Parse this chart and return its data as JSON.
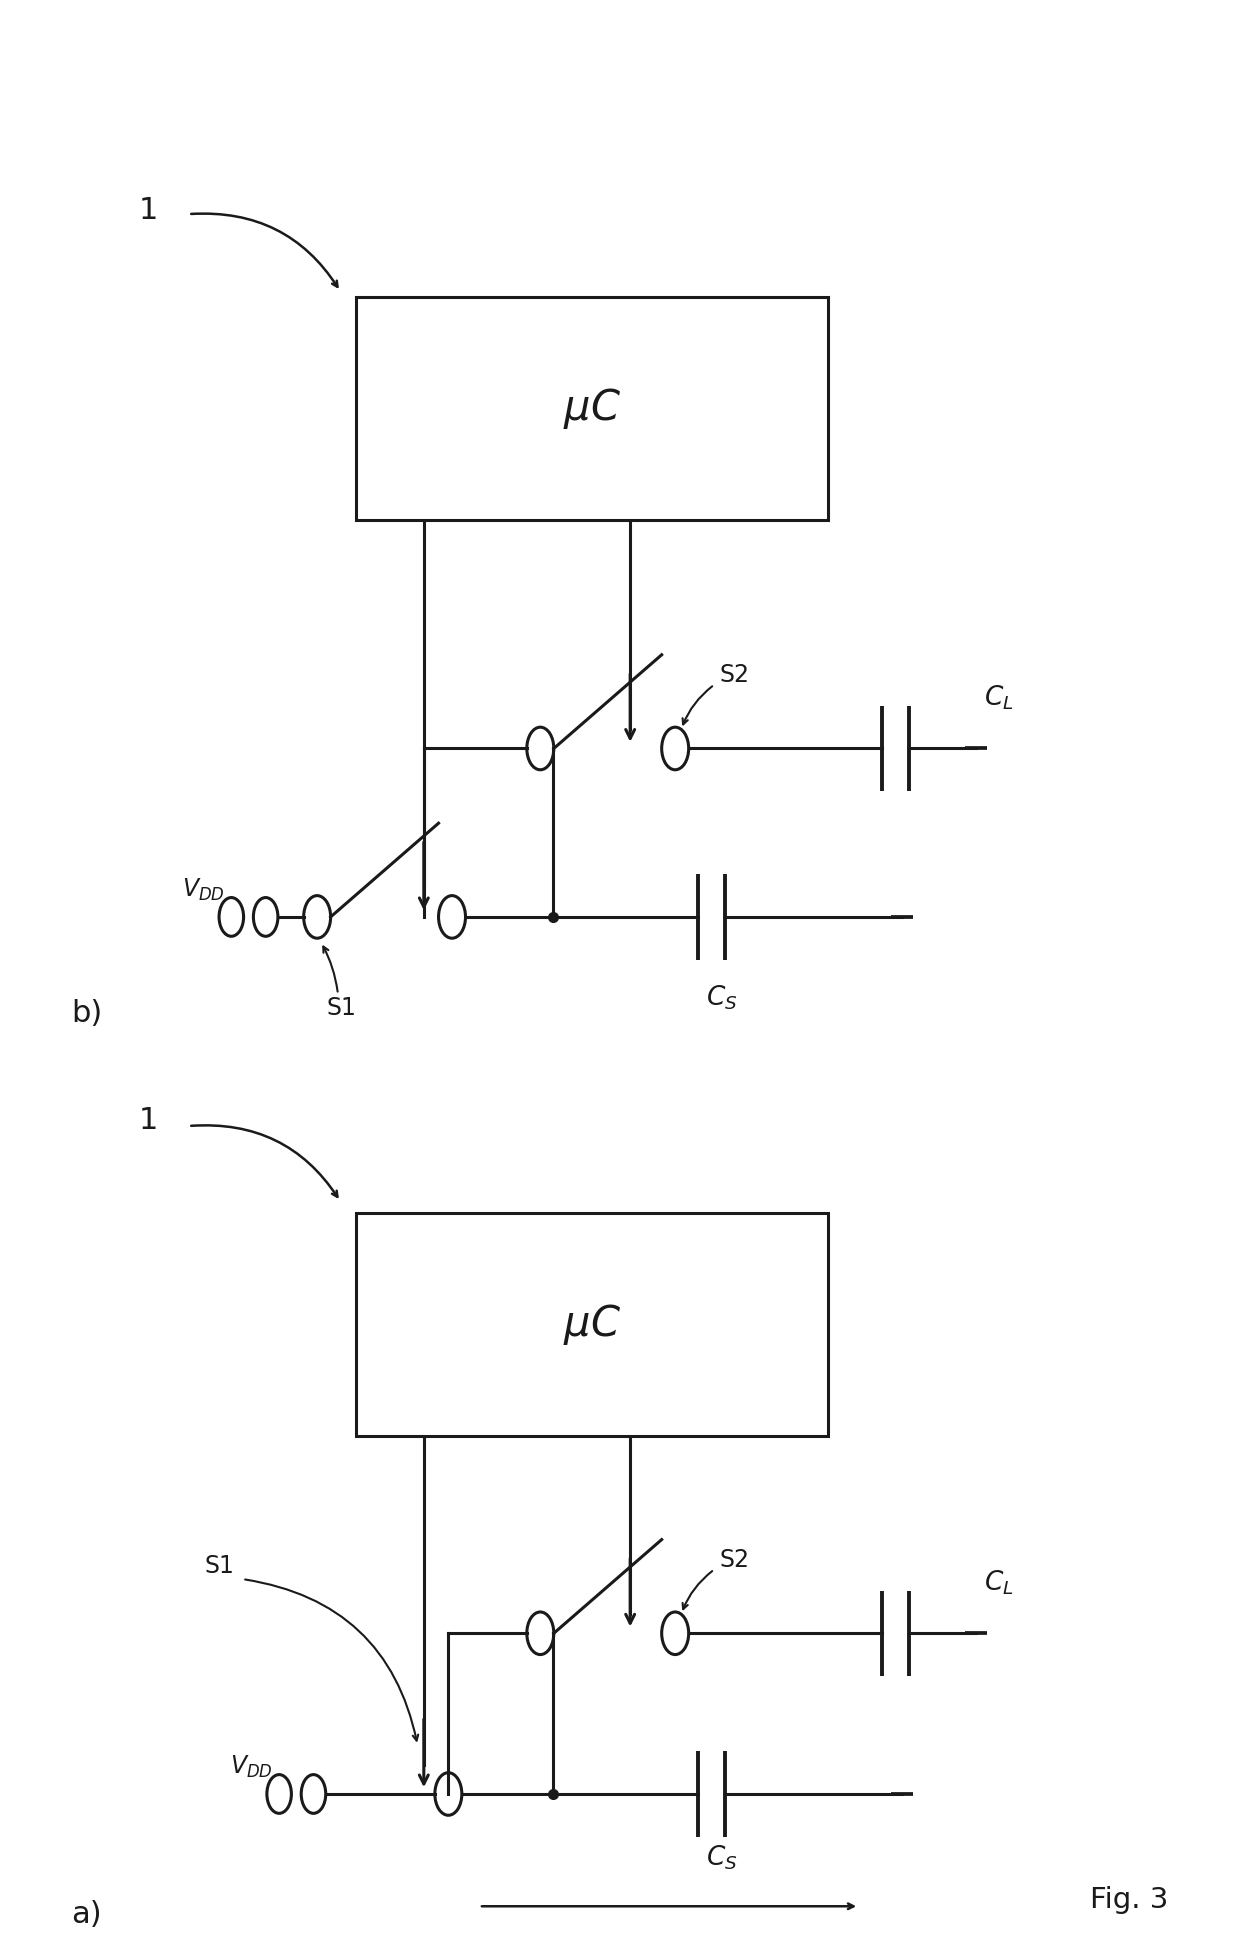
{
  "bg_color": "#ffffff",
  "line_color": "#1a1a1a",
  "line_width": 2.2,
  "fig_label": "Fig. 3",
  "b_label": "b)",
  "a_label": "a)",
  "uc_text": "μC",
  "arrow_label": "1"
}
